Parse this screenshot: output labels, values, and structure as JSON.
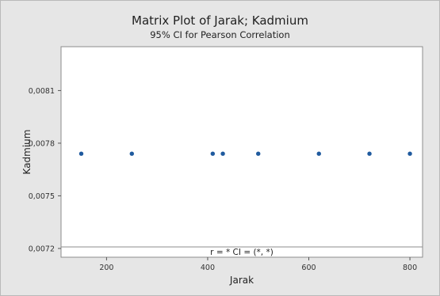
{
  "chart_data": {
    "type": "scatter",
    "title": "Matrix Plot of Jarak; Kadmium",
    "subtitle": "95% CI for Pearson Correlation",
    "xlabel": "Jarak",
    "ylabel": "Kadmium",
    "xlim": [
      110,
      825
    ],
    "ylim": [
      0.00715,
      0.00835
    ],
    "x_ticks": [
      200,
      400,
      600,
      800
    ],
    "x_tick_labels": [
      "200",
      "400",
      "600",
      "800"
    ],
    "y_ticks": [
      0.0072,
      0.0075,
      0.0078,
      0.0081
    ],
    "y_tick_labels": [
      "0,0072",
      "0,0075",
      "0,0078",
      "0,0081"
    ],
    "points": [
      {
        "x": 150,
        "y": 0.00774
      },
      {
        "x": 250,
        "y": 0.00774
      },
      {
        "x": 410,
        "y": 0.00774
      },
      {
        "x": 430,
        "y": 0.00774
      },
      {
        "x": 500,
        "y": 0.00774
      },
      {
        "x": 620,
        "y": 0.00774
      },
      {
        "x": 720,
        "y": 0.00774
      },
      {
        "x": 800,
        "y": 0.00774
      }
    ],
    "annotation": "r = *  CI = (*, *)",
    "grid": false,
    "marker_color": "#1f5a9e"
  }
}
